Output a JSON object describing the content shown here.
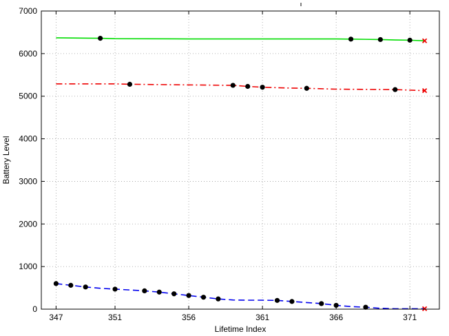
{
  "chart_data": {
    "type": "line",
    "title": "",
    "xlabel": "Lifetime Index",
    "ylabel": "Battery Level",
    "xlim": [
      346,
      373
    ],
    "ylim": [
      0,
      7000
    ],
    "xticks": [
      347,
      351,
      356,
      361,
      366,
      371
    ],
    "yticks": [
      0,
      1000,
      2000,
      3000,
      4000,
      5000,
      6000,
      7000
    ],
    "grid": true,
    "legend": "none",
    "series": [
      {
        "color": "#00dd00",
        "line_style": "solid",
        "x": [
          347,
          350,
          351,
          356,
          361,
          366,
          367,
          368,
          369,
          370,
          371,
          372
        ],
        "y": [
          6370,
          6360,
          6350,
          6345,
          6345,
          6345,
          6340,
          6335,
          6330,
          6320,
          6315,
          6300
        ],
        "markers_x": [
          350,
          367,
          369,
          371
        ],
        "markers_y": [
          6360,
          6340,
          6330,
          6315
        ],
        "end_marker": {
          "x": 372,
          "y": 6300
        }
      },
      {
        "color": "#ee0000",
        "line_style": "dashdot",
        "x": [
          347,
          351,
          352,
          356,
          359,
          360,
          361,
          363,
          364,
          366,
          368,
          370,
          372
        ],
        "y": [
          5290,
          5290,
          5280,
          5265,
          5255,
          5230,
          5210,
          5190,
          5185,
          5165,
          5160,
          5155,
          5130
        ],
        "markers_x": [
          352,
          359,
          360,
          361,
          364,
          370
        ],
        "markers_y": [
          5280,
          5255,
          5230,
          5210,
          5185,
          5155
        ],
        "end_marker": {
          "x": 372,
          "y": 5130
        }
      },
      {
        "color": "#0000ee",
        "line_style": "dashed",
        "x": [
          347,
          348,
          349,
          350,
          351,
          352,
          353,
          354,
          355,
          356,
          357,
          358,
          359,
          360,
          361,
          362,
          363,
          364,
          365,
          366,
          367,
          368,
          369,
          370,
          371,
          372
        ],
        "y": [
          600,
          560,
          520,
          490,
          470,
          450,
          430,
          400,
          360,
          320,
          280,
          240,
          215,
          210,
          210,
          205,
          180,
          155,
          130,
          90,
          60,
          45,
          20,
          10,
          10,
          10
        ],
        "markers_x": [
          347,
          348,
          349,
          351,
          353,
          354,
          355,
          356,
          357,
          358,
          362,
          363,
          365,
          366,
          368
        ],
        "markers_y": [
          600,
          560,
          520,
          470,
          430,
          400,
          360,
          320,
          280,
          240,
          205,
          180,
          130,
          90,
          45
        ],
        "end_marker": {
          "x": 372,
          "y": 10
        }
      }
    ]
  }
}
